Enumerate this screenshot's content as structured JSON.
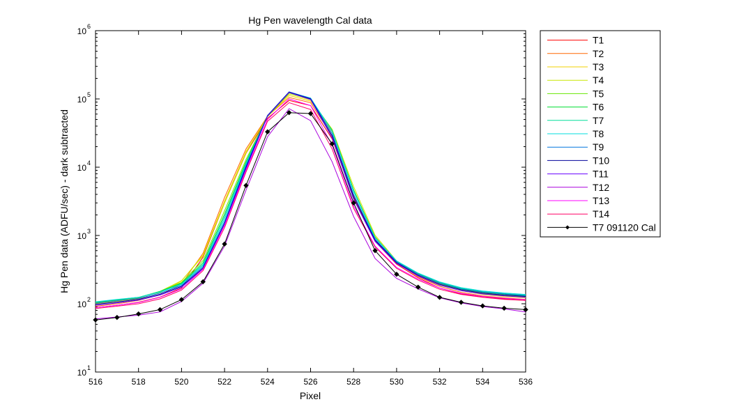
{
  "chart_data": {
    "type": "line",
    "title": "Hg Pen wavelength Cal data",
    "xlabel": "Pixel",
    "ylabel": "Hg Pen data (ADFU/sec) - dark subtracted",
    "xlim": [
      516,
      536
    ],
    "ylim": [
      10,
      1000000
    ],
    "yscale": "log",
    "grid": false,
    "legend_position": "outside-right",
    "x_ticks": [
      "516",
      "518",
      "520",
      "522",
      "524",
      "526",
      "528",
      "530",
      "532",
      "534",
      "536"
    ],
    "y_tick_exponents": [
      "1",
      "2",
      "3",
      "4",
      "5",
      "6"
    ],
    "y_tick_base": "10",
    "x": [
      516,
      517,
      518,
      519,
      520,
      521,
      522,
      523,
      524,
      525,
      526,
      527,
      528,
      529,
      530,
      531,
      532,
      533,
      534,
      535,
      536
    ],
    "series": [
      {
        "name": "T1",
        "color": "#ff0000",
        "values": [
          88,
          95,
          105,
          125,
          170,
          480,
          3000,
          16000,
          52000,
          95000,
          80000,
          26000,
          3500,
          820,
          380,
          240,
          170,
          140,
          125,
          118,
          112
        ]
      },
      {
        "name": "T2",
        "color": "#ff6600",
        "values": [
          92,
          100,
          112,
          135,
          195,
          550,
          3600,
          18500,
          56000,
          105000,
          88000,
          28500,
          3900,
          880,
          395,
          250,
          180,
          147,
          130,
          122,
          116
        ]
      },
      {
        "name": "T3",
        "color": "#f2d200",
        "values": [
          100,
          108,
          118,
          145,
          215,
          520,
          3200,
          17000,
          55000,
          112000,
          93000,
          33000,
          4600,
          960,
          410,
          262,
          190,
          155,
          137,
          128,
          122
        ]
      },
      {
        "name": "T4",
        "color": "#c8e600",
        "values": [
          103,
          112,
          122,
          152,
          218,
          500,
          3000,
          16200,
          55500,
          118000,
          97000,
          36000,
          5200,
          1010,
          425,
          272,
          198,
          160,
          142,
          132,
          126
        ]
      },
      {
        "name": "T5",
        "color": "#66e600",
        "values": [
          104,
          113,
          123,
          152,
          205,
          430,
          2300,
          13000,
          55000,
          122000,
          100000,
          35000,
          4700,
          950,
          420,
          275,
          200,
          163,
          145,
          135,
          129
        ]
      },
      {
        "name": "T6",
        "color": "#00dd33",
        "values": [
          105,
          114,
          124,
          152,
          200,
          400,
          2050,
          12000,
          56000,
          124000,
          101000,
          34500,
          4600,
          940,
          420,
          277,
          203,
          166,
          148,
          138,
          131
        ]
      },
      {
        "name": "T7",
        "color": "#00dd99",
        "values": [
          106,
          115,
          124,
          150,
          196,
          380,
          1900,
          11500,
          56500,
          125000,
          102000,
          34000,
          4500,
          930,
          422,
          279,
          206,
          169,
          151,
          141,
          134
        ]
      },
      {
        "name": "T8",
        "color": "#00dddd",
        "values": [
          107,
          116,
          124,
          148,
          192,
          365,
          1750,
          11000,
          57000,
          126000,
          103000,
          33500,
          4400,
          920,
          424,
          281,
          209,
          172,
          154,
          144,
          137
        ]
      },
      {
        "name": "T9",
        "color": "#0077dd",
        "values": [
          102,
          111,
          120,
          143,
          186,
          350,
          1600,
          10500,
          57500,
          127000,
          102000,
          31000,
          4000,
          880,
          410,
          270,
          200,
          165,
          148,
          139,
          132
        ]
      },
      {
        "name": "T10",
        "color": "#000099",
        "values": [
          98,
          106,
          116,
          138,
          180,
          335,
          1500,
          10000,
          57000,
          126000,
          100000,
          29000,
          3700,
          850,
          400,
          262,
          193,
          160,
          143,
          134,
          128
        ]
      },
      {
        "name": "T11",
        "color": "#6600ff",
        "values": [
          95,
          103,
          113,
          134,
          175,
          325,
          1450,
          9500,
          56000,
          124000,
          98000,
          27000,
          3400,
          820,
          390,
          255,
          187,
          155,
          139,
          130,
          124
        ]
      },
      {
        "name": "T12",
        "color": "#aa00dd",
        "values": [
          60,
          64,
          68,
          76,
          108,
          200,
          700,
          4600,
          28000,
          72000,
          48000,
          12000,
          1900,
          460,
          235,
          165,
          122,
          103,
          91,
          84,
          76
        ]
      },
      {
        "name": "T13",
        "color": "#ff00ff",
        "values": [
          88,
          95,
          104,
          124,
          165,
          320,
          1400,
          9000,
          50000,
          100000,
          80000,
          21000,
          2700,
          700,
          340,
          230,
          170,
          142,
          128,
          120,
          115
        ]
      },
      {
        "name": "T14",
        "color": "#ff0066",
        "values": [
          85,
          92,
          100,
          118,
          158,
          305,
          1300,
          8500,
          47000,
          88000,
          70000,
          18500,
          2500,
          680,
          330,
          222,
          163,
          137,
          124,
          116,
          112
        ]
      },
      {
        "name": "T7 091120 Cal",
        "color": "#000000",
        "marker": "diamond",
        "values": [
          58,
          63,
          71,
          82,
          115,
          210,
          750,
          5400,
          33000,
          63000,
          61000,
          22000,
          3000,
          600,
          270,
          175,
          124,
          105,
          93,
          86,
          82
        ]
      }
    ]
  }
}
